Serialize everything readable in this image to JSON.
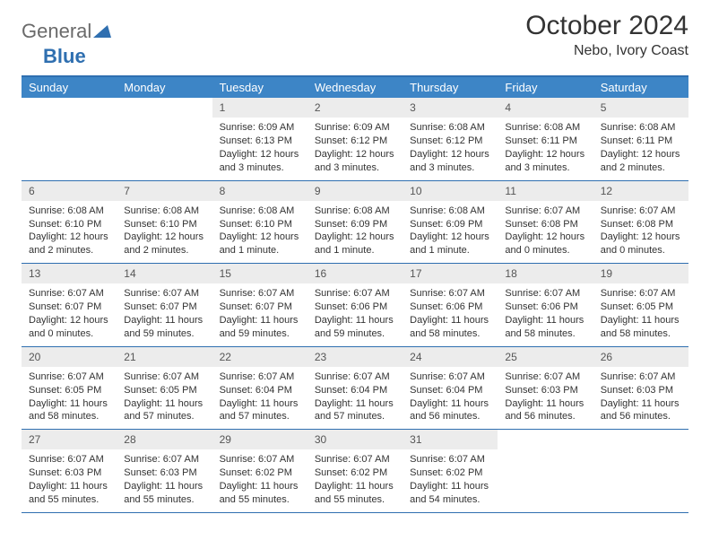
{
  "logo": {
    "part1": "General",
    "part2": "Blue"
  },
  "title": "October 2024",
  "location": "Nebo, Ivory Coast",
  "colors": {
    "header_bar": "#3d85c6",
    "border": "#2f6fb0",
    "daynum_bg": "#ececec",
    "text": "#333333"
  },
  "dow": [
    "Sunday",
    "Monday",
    "Tuesday",
    "Wednesday",
    "Thursday",
    "Friday",
    "Saturday"
  ],
  "weeks": [
    [
      {
        "n": "",
        "sr": "",
        "ss": "",
        "dl": ""
      },
      {
        "n": "",
        "sr": "",
        "ss": "",
        "dl": ""
      },
      {
        "n": "1",
        "sr": "Sunrise: 6:09 AM",
        "ss": "Sunset: 6:13 PM",
        "dl": "Daylight: 12 hours and 3 minutes."
      },
      {
        "n": "2",
        "sr": "Sunrise: 6:09 AM",
        "ss": "Sunset: 6:12 PM",
        "dl": "Daylight: 12 hours and 3 minutes."
      },
      {
        "n": "3",
        "sr": "Sunrise: 6:08 AM",
        "ss": "Sunset: 6:12 PM",
        "dl": "Daylight: 12 hours and 3 minutes."
      },
      {
        "n": "4",
        "sr": "Sunrise: 6:08 AM",
        "ss": "Sunset: 6:11 PM",
        "dl": "Daylight: 12 hours and 3 minutes."
      },
      {
        "n": "5",
        "sr": "Sunrise: 6:08 AM",
        "ss": "Sunset: 6:11 PM",
        "dl": "Daylight: 12 hours and 2 minutes."
      }
    ],
    [
      {
        "n": "6",
        "sr": "Sunrise: 6:08 AM",
        "ss": "Sunset: 6:10 PM",
        "dl": "Daylight: 12 hours and 2 minutes."
      },
      {
        "n": "7",
        "sr": "Sunrise: 6:08 AM",
        "ss": "Sunset: 6:10 PM",
        "dl": "Daylight: 12 hours and 2 minutes."
      },
      {
        "n": "8",
        "sr": "Sunrise: 6:08 AM",
        "ss": "Sunset: 6:10 PM",
        "dl": "Daylight: 12 hours and 1 minute."
      },
      {
        "n": "9",
        "sr": "Sunrise: 6:08 AM",
        "ss": "Sunset: 6:09 PM",
        "dl": "Daylight: 12 hours and 1 minute."
      },
      {
        "n": "10",
        "sr": "Sunrise: 6:08 AM",
        "ss": "Sunset: 6:09 PM",
        "dl": "Daylight: 12 hours and 1 minute."
      },
      {
        "n": "11",
        "sr": "Sunrise: 6:07 AM",
        "ss": "Sunset: 6:08 PM",
        "dl": "Daylight: 12 hours and 0 minutes."
      },
      {
        "n": "12",
        "sr": "Sunrise: 6:07 AM",
        "ss": "Sunset: 6:08 PM",
        "dl": "Daylight: 12 hours and 0 minutes."
      }
    ],
    [
      {
        "n": "13",
        "sr": "Sunrise: 6:07 AM",
        "ss": "Sunset: 6:07 PM",
        "dl": "Daylight: 12 hours and 0 minutes."
      },
      {
        "n": "14",
        "sr": "Sunrise: 6:07 AM",
        "ss": "Sunset: 6:07 PM",
        "dl": "Daylight: 11 hours and 59 minutes."
      },
      {
        "n": "15",
        "sr": "Sunrise: 6:07 AM",
        "ss": "Sunset: 6:07 PM",
        "dl": "Daylight: 11 hours and 59 minutes."
      },
      {
        "n": "16",
        "sr": "Sunrise: 6:07 AM",
        "ss": "Sunset: 6:06 PM",
        "dl": "Daylight: 11 hours and 59 minutes."
      },
      {
        "n": "17",
        "sr": "Sunrise: 6:07 AM",
        "ss": "Sunset: 6:06 PM",
        "dl": "Daylight: 11 hours and 58 minutes."
      },
      {
        "n": "18",
        "sr": "Sunrise: 6:07 AM",
        "ss": "Sunset: 6:06 PM",
        "dl": "Daylight: 11 hours and 58 minutes."
      },
      {
        "n": "19",
        "sr": "Sunrise: 6:07 AM",
        "ss": "Sunset: 6:05 PM",
        "dl": "Daylight: 11 hours and 58 minutes."
      }
    ],
    [
      {
        "n": "20",
        "sr": "Sunrise: 6:07 AM",
        "ss": "Sunset: 6:05 PM",
        "dl": "Daylight: 11 hours and 58 minutes."
      },
      {
        "n": "21",
        "sr": "Sunrise: 6:07 AM",
        "ss": "Sunset: 6:05 PM",
        "dl": "Daylight: 11 hours and 57 minutes."
      },
      {
        "n": "22",
        "sr": "Sunrise: 6:07 AM",
        "ss": "Sunset: 6:04 PM",
        "dl": "Daylight: 11 hours and 57 minutes."
      },
      {
        "n": "23",
        "sr": "Sunrise: 6:07 AM",
        "ss": "Sunset: 6:04 PM",
        "dl": "Daylight: 11 hours and 57 minutes."
      },
      {
        "n": "24",
        "sr": "Sunrise: 6:07 AM",
        "ss": "Sunset: 6:04 PM",
        "dl": "Daylight: 11 hours and 56 minutes."
      },
      {
        "n": "25",
        "sr": "Sunrise: 6:07 AM",
        "ss": "Sunset: 6:03 PM",
        "dl": "Daylight: 11 hours and 56 minutes."
      },
      {
        "n": "26",
        "sr": "Sunrise: 6:07 AM",
        "ss": "Sunset: 6:03 PM",
        "dl": "Daylight: 11 hours and 56 minutes."
      }
    ],
    [
      {
        "n": "27",
        "sr": "Sunrise: 6:07 AM",
        "ss": "Sunset: 6:03 PM",
        "dl": "Daylight: 11 hours and 55 minutes."
      },
      {
        "n": "28",
        "sr": "Sunrise: 6:07 AM",
        "ss": "Sunset: 6:03 PM",
        "dl": "Daylight: 11 hours and 55 minutes."
      },
      {
        "n": "29",
        "sr": "Sunrise: 6:07 AM",
        "ss": "Sunset: 6:02 PM",
        "dl": "Daylight: 11 hours and 55 minutes."
      },
      {
        "n": "30",
        "sr": "Sunrise: 6:07 AM",
        "ss": "Sunset: 6:02 PM",
        "dl": "Daylight: 11 hours and 55 minutes."
      },
      {
        "n": "31",
        "sr": "Sunrise: 6:07 AM",
        "ss": "Sunset: 6:02 PM",
        "dl": "Daylight: 11 hours and 54 minutes."
      },
      {
        "n": "",
        "sr": "",
        "ss": "",
        "dl": ""
      },
      {
        "n": "",
        "sr": "",
        "ss": "",
        "dl": ""
      }
    ]
  ]
}
